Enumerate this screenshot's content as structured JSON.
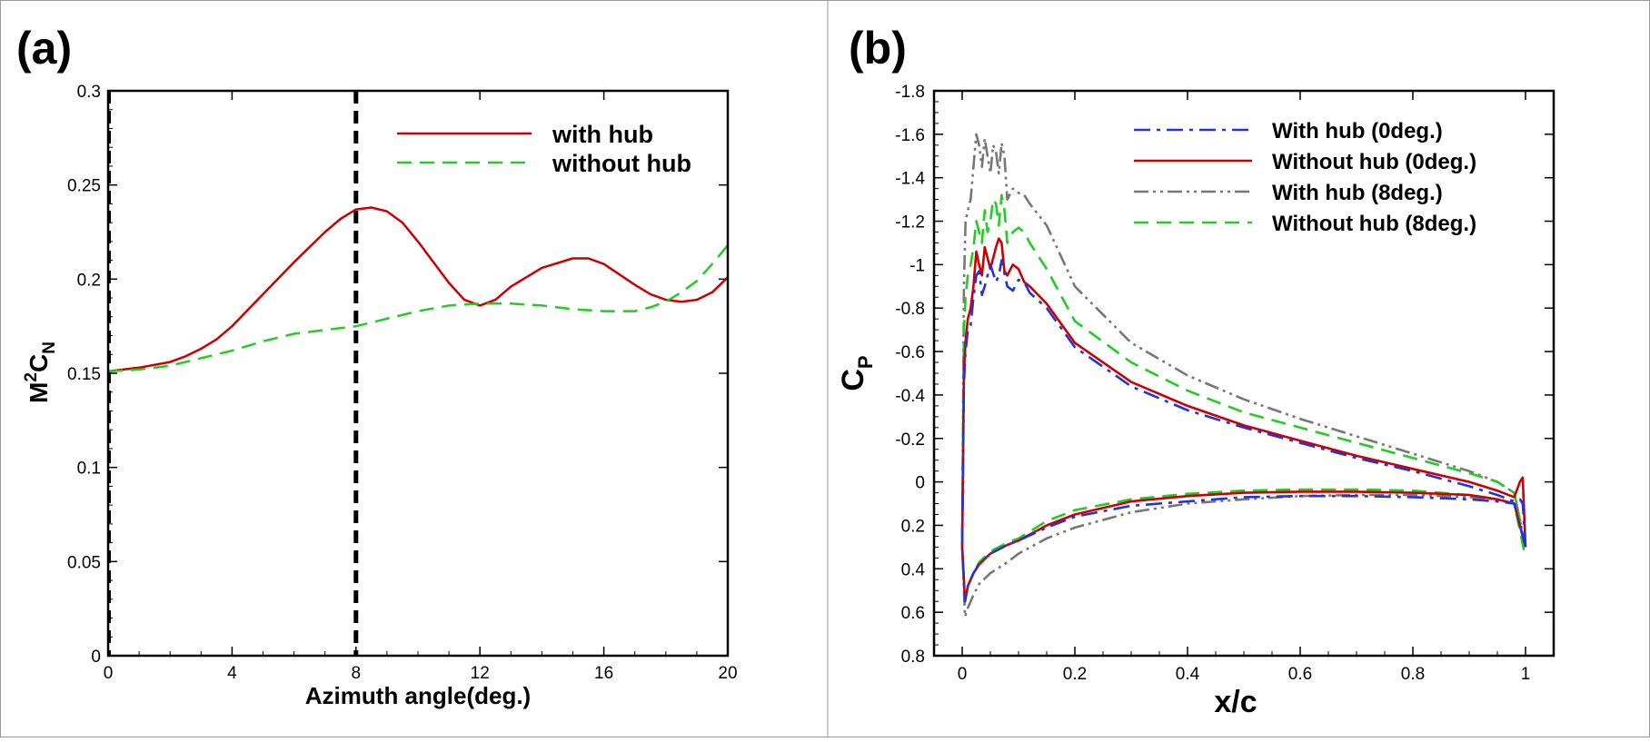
{
  "figure": {
    "panels": [
      {
        "label": "(a)"
      },
      {
        "label": "(b)"
      }
    ]
  },
  "chart_data": [
    {
      "type": "line",
      "panel_label": "(a)",
      "xlabel": "Azimuth angle(deg.)",
      "ylabel": "M",
      "ylabel_sup": "2",
      "ylabel_mid": "C",
      "ylabel_sub": "N",
      "xlim": [
        0,
        20
      ],
      "ylim": [
        0,
        0.3
      ],
      "xticks": [
        0,
        4,
        8,
        12,
        16,
        20
      ],
      "yticks": [
        0,
        0.05,
        0.1,
        0.15,
        0.2,
        0.25,
        0.3
      ],
      "vline": 8,
      "legend_position": "top-right",
      "series": [
        {
          "name": "with hub",
          "color": "#cc0000",
          "dash": "solid",
          "x": [
            0,
            1,
            2,
            2.5,
            3,
            3.5,
            4,
            5,
            6,
            7,
            7.5,
            8,
            8.5,
            9,
            9.5,
            10,
            11,
            11.5,
            12,
            12.5,
            13,
            14,
            15,
            15.5,
            16,
            17,
            17.5,
            18,
            18.5,
            19,
            19.5,
            20
          ],
          "y": [
            0.151,
            0.153,
            0.156,
            0.159,
            0.163,
            0.168,
            0.175,
            0.192,
            0.209,
            0.225,
            0.232,
            0.237,
            0.238,
            0.236,
            0.23,
            0.22,
            0.198,
            0.189,
            0.186,
            0.189,
            0.196,
            0.206,
            0.211,
            0.211,
            0.208,
            0.197,
            0.192,
            0.189,
            0.188,
            0.189,
            0.193,
            0.201
          ]
        },
        {
          "name": "without hub",
          "color": "#22cc22",
          "dash": "dashed",
          "x": [
            0,
            1,
            2,
            3,
            4,
            5,
            6,
            7,
            8,
            9,
            10,
            11,
            12,
            13,
            14,
            15,
            16,
            17,
            17.5,
            18,
            18.5,
            19,
            19.5,
            20
          ],
          "y": [
            0.151,
            0.152,
            0.154,
            0.158,
            0.162,
            0.167,
            0.171,
            0.173,
            0.175,
            0.179,
            0.183,
            0.186,
            0.187,
            0.187,
            0.186,
            0.184,
            0.183,
            0.183,
            0.185,
            0.188,
            0.193,
            0.199,
            0.208,
            0.218
          ]
        }
      ]
    },
    {
      "type": "line",
      "panel_label": "(b)",
      "xlabel": "x/c",
      "ylabel": "C",
      "ylabel_sub": "P",
      "xlim": [
        -0.05,
        1.05
      ],
      "ylim": [
        0.8,
        -1.8
      ],
      "y_inverted": true,
      "xticks": [
        0,
        0.2,
        0.4,
        0.6,
        0.8,
        1
      ],
      "yticks": [
        -1.8,
        -1.6,
        -1.4,
        -1.2,
        -1,
        -0.8,
        -0.6,
        -0.4,
        -0.2,
        0,
        0.2,
        0.4,
        0.6,
        0.8
      ],
      "legend_position": "top-right",
      "series": [
        {
          "name": "With hub (0deg.)",
          "color": "#2233dd",
          "dash": "dashdot",
          "upper_x": [
            0.0,
            0.003,
            0.006,
            0.01,
            0.015,
            0.02,
            0.025,
            0.03,
            0.035,
            0.04,
            0.05,
            0.06,
            0.065,
            0.07,
            0.08,
            0.09,
            0.1,
            0.11,
            0.12,
            0.15,
            0.2,
            0.3,
            0.4,
            0.5,
            0.6,
            0.7,
            0.8,
            0.9,
            0.95,
            0.98,
            0.99,
            0.995,
            1.0
          ],
          "upper_y": [
            0.3,
            -0.45,
            -0.6,
            -0.7,
            -0.72,
            -0.85,
            -0.95,
            -0.97,
            -0.86,
            -0.9,
            -1.0,
            -0.92,
            -0.95,
            -1.02,
            -0.9,
            -0.88,
            -0.93,
            -0.92,
            -0.87,
            -0.8,
            -0.62,
            -0.44,
            -0.33,
            -0.25,
            -0.18,
            -0.11,
            -0.05,
            0.02,
            0.06,
            0.09,
            0.08,
            0.1,
            0.3
          ],
          "lower_x": [
            0.0,
            0.005,
            0.01,
            0.02,
            0.03,
            0.05,
            0.08,
            0.1,
            0.15,
            0.2,
            0.3,
            0.4,
            0.5,
            0.6,
            0.7,
            0.8,
            0.9,
            0.95,
            0.98,
            1.0
          ],
          "lower_y": [
            0.62,
            0.55,
            0.48,
            0.42,
            0.38,
            0.33,
            0.29,
            0.27,
            0.21,
            0.16,
            0.11,
            0.09,
            0.07,
            0.065,
            0.065,
            0.07,
            0.08,
            0.09,
            0.1,
            0.3
          ]
        },
        {
          "name": "Without hub (0deg.)",
          "color": "#cc0000",
          "dash": "solid",
          "upper_x": [
            0.0,
            0.003,
            0.006,
            0.01,
            0.015,
            0.02,
            0.025,
            0.03,
            0.035,
            0.04,
            0.05,
            0.06,
            0.065,
            0.07,
            0.075,
            0.08,
            0.09,
            0.1,
            0.11,
            0.12,
            0.15,
            0.2,
            0.3,
            0.4,
            0.5,
            0.6,
            0.7,
            0.8,
            0.9,
            0.95,
            0.98,
            0.99,
            0.995,
            1.0
          ],
          "upper_y": [
            0.3,
            -0.5,
            -0.65,
            -0.75,
            -0.8,
            -0.9,
            -1.06,
            -1.0,
            -0.95,
            -1.08,
            -0.98,
            -1.08,
            -1.12,
            -1.1,
            -0.97,
            -0.95,
            -1.0,
            -0.98,
            -0.92,
            -0.9,
            -0.82,
            -0.64,
            -0.46,
            -0.35,
            -0.26,
            -0.19,
            -0.12,
            -0.06,
            0.0,
            0.04,
            0.07,
            0.0,
            -0.02,
            0.3
          ],
          "lower_x": [
            0.0,
            0.005,
            0.01,
            0.02,
            0.03,
            0.05,
            0.08,
            0.1,
            0.15,
            0.2,
            0.3,
            0.4,
            0.5,
            0.6,
            0.7,
            0.8,
            0.9,
            0.95,
            0.98,
            1.0
          ],
          "lower_y": [
            0.63,
            0.55,
            0.48,
            0.42,
            0.38,
            0.33,
            0.29,
            0.27,
            0.2,
            0.15,
            0.09,
            0.065,
            0.05,
            0.045,
            0.045,
            0.05,
            0.06,
            0.08,
            0.1,
            0.3
          ]
        },
        {
          "name": "With hub (8deg.)",
          "color": "#777777",
          "dash": "dashdotdot",
          "upper_x": [
            0.0,
            0.003,
            0.006,
            0.01,
            0.015,
            0.02,
            0.025,
            0.03,
            0.035,
            0.04,
            0.045,
            0.05,
            0.055,
            0.06,
            0.065,
            0.07,
            0.075,
            0.08,
            0.09,
            0.1,
            0.11,
            0.12,
            0.15,
            0.2,
            0.3,
            0.4,
            0.5,
            0.6,
            0.7,
            0.8,
            0.9,
            0.95,
            0.98,
            1.0
          ],
          "upper_y": [
            0.3,
            -0.9,
            -1.2,
            -1.25,
            -1.3,
            -1.45,
            -1.6,
            -1.55,
            -1.45,
            -1.58,
            -1.5,
            -1.42,
            -1.55,
            -1.52,
            -1.42,
            -1.56,
            -1.5,
            -1.3,
            -1.35,
            -1.33,
            -1.32,
            -1.28,
            -1.18,
            -0.9,
            -0.64,
            -0.49,
            -0.38,
            -0.29,
            -0.21,
            -0.13,
            -0.05,
            0.0,
            0.05,
            0.3
          ],
          "lower_x": [
            0.0,
            0.005,
            0.01,
            0.02,
            0.03,
            0.05,
            0.08,
            0.1,
            0.15,
            0.2,
            0.3,
            0.4,
            0.5,
            0.6,
            0.7,
            0.8,
            0.9,
            0.95,
            0.98,
            1.0
          ],
          "lower_y": [
            0.65,
            0.62,
            0.58,
            0.52,
            0.47,
            0.42,
            0.37,
            0.33,
            0.26,
            0.21,
            0.14,
            0.1,
            0.08,
            0.065,
            0.06,
            0.06,
            0.07,
            0.08,
            0.1,
            0.3
          ]
        },
        {
          "name": "Without hub (8deg.)",
          "color": "#22cc22",
          "dash": "dashed",
          "upper_x": [
            0.0,
            0.003,
            0.006,
            0.01,
            0.015,
            0.02,
            0.025,
            0.03,
            0.035,
            0.04,
            0.045,
            0.05,
            0.055,
            0.06,
            0.065,
            0.07,
            0.075,
            0.08,
            0.09,
            0.1,
            0.11,
            0.12,
            0.15,
            0.2,
            0.3,
            0.4,
            0.5,
            0.6,
            0.7,
            0.8,
            0.9,
            0.95,
            0.98,
            1.0
          ],
          "upper_y": [
            0.3,
            -0.7,
            -0.85,
            -0.95,
            -1.0,
            -1.08,
            -1.2,
            -1.15,
            -1.1,
            -1.25,
            -1.15,
            -1.2,
            -1.3,
            -1.28,
            -1.18,
            -1.32,
            -1.25,
            -1.1,
            -1.15,
            -1.17,
            -1.15,
            -1.1,
            -0.98,
            -0.74,
            -0.55,
            -0.42,
            -0.32,
            -0.25,
            -0.18,
            -0.11,
            -0.04,
            0.0,
            0.05,
            0.3
          ],
          "lower_x": [
            0.0,
            0.005,
            0.01,
            0.02,
            0.03,
            0.05,
            0.08,
            0.1,
            0.15,
            0.2,
            0.3,
            0.4,
            0.5,
            0.6,
            0.7,
            0.8,
            0.9,
            0.95,
            0.98,
            1.0
          ],
          "lower_y": [
            0.64,
            0.55,
            0.48,
            0.42,
            0.37,
            0.32,
            0.28,
            0.26,
            0.18,
            0.13,
            0.08,
            0.055,
            0.04,
            0.035,
            0.035,
            0.04,
            0.06,
            0.08,
            0.1,
            0.35
          ]
        }
      ]
    }
  ]
}
